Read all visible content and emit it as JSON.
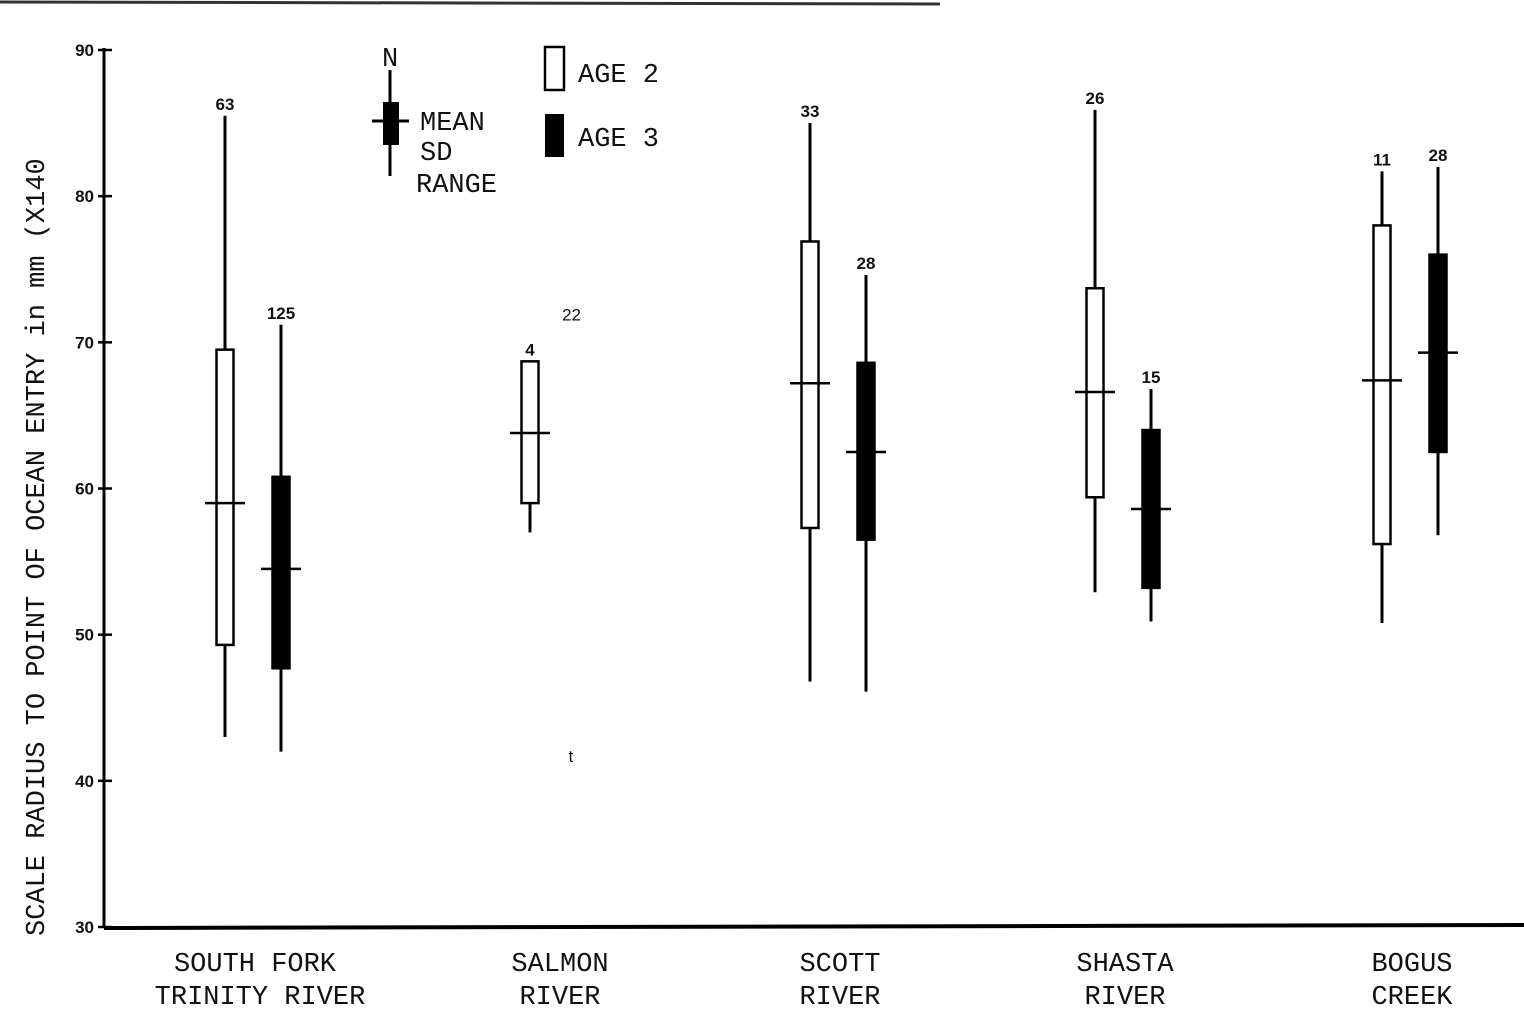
{
  "chart_data": {
    "type": "box",
    "ylabel": "SCALE RADIUS TO POINT OF OCEAN ENTRY in mm (X140",
    "ylim": [
      30,
      90
    ],
    "yticks": [
      30,
      40,
      50,
      60,
      70,
      80,
      90
    ],
    "categories": [
      {
        "line1": "SOUTH  FORK",
        "line2": "TRINITY  RIVER"
      },
      {
        "line1": "SALMON",
        "line2": "RIVER"
      },
      {
        "line1": "SCOTT",
        "line2": "RIVER"
      },
      {
        "line1": "SHASTA",
        "line2": "RIVER"
      },
      {
        "line1": "BOGUS",
        "line2": "CREEK"
      }
    ],
    "series": [
      {
        "name": "AGE 2",
        "fill": "#ffffff",
        "boxes": [
          {
            "category": 0,
            "n": "63",
            "min": 43,
            "sd_low": 49.3,
            "mean": 59,
            "sd_high": 69.5,
            "max": 85.5
          },
          {
            "category": 1,
            "n": "4",
            "min": 57,
            "sd_low": 59,
            "mean": 63.8,
            "sd_high": 68.7,
            "max": 68.7
          },
          {
            "category": 2,
            "n": "33",
            "min": 46.8,
            "sd_low": 57.3,
            "mean": 67.2,
            "sd_high": 76.9,
            "max": 85
          },
          {
            "category": 3,
            "n": "26",
            "min": 52.9,
            "sd_low": 59.4,
            "mean": 66.6,
            "sd_high": 73.7,
            "max": 85.9
          },
          {
            "category": 4,
            "n": "11",
            "min": 50.8,
            "sd_low": 56.2,
            "mean": 67.4,
            "sd_high": 78,
            "max": 81.7
          }
        ]
      },
      {
        "name": "AGE 3",
        "fill": "#000000",
        "boxes": [
          {
            "category": 0,
            "n": "125",
            "min": 42,
            "sd_low": 47.7,
            "mean": 54.5,
            "sd_high": 60.8,
            "max": 71.2
          },
          {
            "category": 2,
            "n": "28",
            "min": 46.1,
            "sd_low": 56.5,
            "mean": 62.5,
            "sd_high": 68.6,
            "max": 74.6
          },
          {
            "category": 3,
            "n": "15",
            "min": 50.9,
            "sd_low": 53.2,
            "mean": 58.6,
            "sd_high": 64,
            "max": 66.8
          },
          {
            "category": 4,
            "n": "28",
            "min": 56.8,
            "sd_low": 62.5,
            "mean": 69.3,
            "sd_high": 76,
            "max": 82
          }
        ]
      }
    ],
    "annotations": [
      {
        "text": "22",
        "x_category": 1.35,
        "y": 71.5
      },
      {
        "text": "t",
        "x_category": 1.33,
        "y": 41.3
      }
    ],
    "legend": {
      "placement": "top-left",
      "n_label": "N",
      "key_labels": [
        "MEAN",
        "SD",
        "RANGE"
      ],
      "series_labels": [
        "AGE 2",
        "AGE 3"
      ]
    }
  }
}
